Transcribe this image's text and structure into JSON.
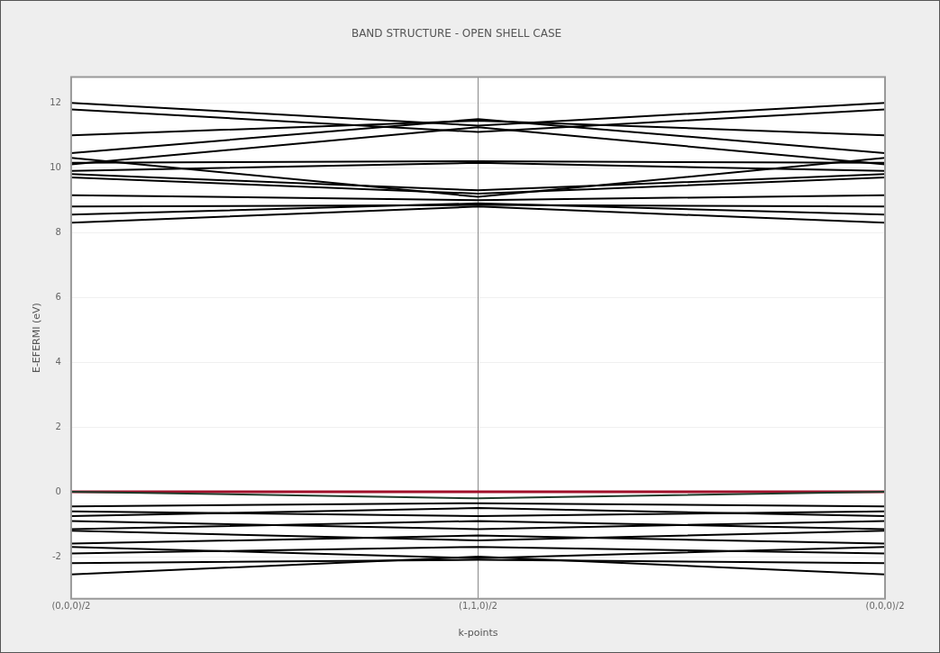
{
  "chart_data": {
    "type": "line",
    "title": "BAND STRUCTURE - OPEN SHELL CASE",
    "xlabel": "k-points",
    "ylabel": "E-EFERMI (eV)",
    "categories": [
      "(0,0,0)/2",
      "(1,1,0)/2",
      "(0,0,0)/2"
    ],
    "ylim": [
      -3.3,
      12.8
    ],
    "yticks": [
      -2,
      0,
      2,
      4,
      6,
      8,
      10,
      12
    ],
    "grid": "y",
    "legend": false,
    "marker": "none",
    "line_style": "solid",
    "ref_lines": [
      {
        "axis": "x",
        "value": "(1,1,0)/2",
        "color": "#888888"
      },
      {
        "axis": "y",
        "value": 0,
        "color": "#a0102a"
      }
    ],
    "series": [
      {
        "color": "#000000",
        "values": [
          12.0,
          11.3,
          12.0
        ]
      },
      {
        "color": "#000000",
        "values": [
          11.8,
          11.1,
          11.8
        ]
      },
      {
        "color": "#000000",
        "values": [
          11.0,
          11.45,
          11.0
        ]
      },
      {
        "color": "#000000",
        "values": [
          10.45,
          11.5,
          10.45
        ]
      },
      {
        "color": "#000000",
        "values": [
          10.3,
          9.1,
          10.3
        ]
      },
      {
        "color": "#000000",
        "values": [
          10.15,
          10.2,
          10.15
        ]
      },
      {
        "color": "#000000",
        "values": [
          10.1,
          11.25,
          10.1
        ]
      },
      {
        "color": "#000000",
        "values": [
          9.9,
          10.15,
          9.9
        ]
      },
      {
        "color": "#000000",
        "values": [
          9.8,
          9.3,
          9.8
        ]
      },
      {
        "color": "#000000",
        "values": [
          9.7,
          9.2,
          9.7
        ]
      },
      {
        "color": "#000000",
        "values": [
          9.15,
          9.0,
          9.15
        ]
      },
      {
        "color": "#000000",
        "values": [
          8.8,
          8.85,
          8.8
        ]
      },
      {
        "color": "#000000",
        "values": [
          8.55,
          8.9,
          8.55
        ]
      },
      {
        "color": "#000000",
        "values": [
          8.3,
          8.8,
          8.3
        ]
      },
      {
        "color": "#1e3b2a",
        "values": [
          0.0,
          -0.2,
          0.0
        ]
      },
      {
        "color": "#000000",
        "values": [
          -0.45,
          -0.35,
          -0.45
        ]
      },
      {
        "color": "#000000",
        "values": [
          -0.6,
          -0.75,
          -0.6
        ]
      },
      {
        "color": "#000000",
        "values": [
          -0.75,
          -0.5,
          -0.75
        ]
      },
      {
        "color": "#000000",
        "values": [
          -0.9,
          -1.15,
          -0.9
        ]
      },
      {
        "color": "#000000",
        "values": [
          -1.15,
          -0.9,
          -1.15
        ]
      },
      {
        "color": "#000000",
        "values": [
          -1.2,
          -1.5,
          -1.2
        ]
      },
      {
        "color": "#000000",
        "values": [
          -1.6,
          -1.35,
          -1.6
        ]
      },
      {
        "color": "#000000",
        "values": [
          -1.7,
          -2.05,
          -1.7
        ]
      },
      {
        "color": "#000000",
        "values": [
          -1.9,
          -1.7,
          -1.9
        ]
      },
      {
        "color": "#000000",
        "values": [
          -2.2,
          -2.1,
          -2.2
        ]
      },
      {
        "color": "#000000",
        "values": [
          -2.55,
          -2.0,
          -2.55
        ]
      }
    ]
  }
}
